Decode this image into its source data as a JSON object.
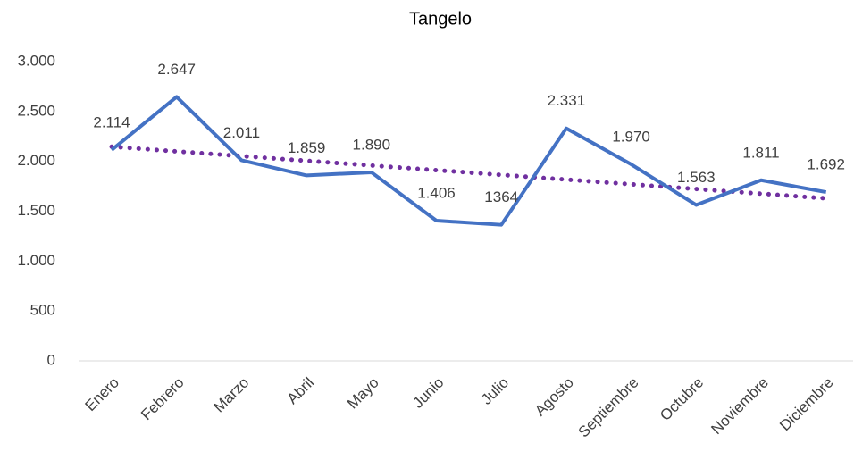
{
  "chart_data": {
    "type": "line",
    "title": "Tangelo",
    "categories": [
      "Enero",
      "Febrero",
      "Marzo",
      "Abril",
      "Mayo",
      "Junio",
      "Julio",
      "Agosto",
      "Septiembre",
      "Octubre",
      "Noviembre",
      "Diciembre"
    ],
    "series": [
      {
        "name": "Tangelo",
        "color": "#4472c4",
        "values": [
          2114,
          2647,
          2011,
          1859,
          1890,
          1406,
          1364,
          2331,
          1970,
          1563,
          1811,
          1692
        ],
        "value_labels": [
          "2.114",
          "2.647",
          "2.011",
          "1.859",
          "1.890",
          "1.406",
          "1364",
          "2.331",
          "1.970",
          "1.563",
          "1.811",
          "1.692"
        ]
      }
    ],
    "trendline": {
      "type": "linear",
      "color": "#7030a0",
      "style": "dotted"
    },
    "ylim": [
      0,
      3000
    ],
    "yticks": [
      0,
      500,
      {
        "value": 1000,
        "label": "1.000"
      },
      {
        "value": 1500,
        "label": "1.500"
      },
      {
        "value": 2000,
        "label": "2.000"
      },
      {
        "value": 2500,
        "label": "2.500"
      },
      {
        "value": 3000,
        "label": "3.000"
      }
    ],
    "grid": false
  }
}
